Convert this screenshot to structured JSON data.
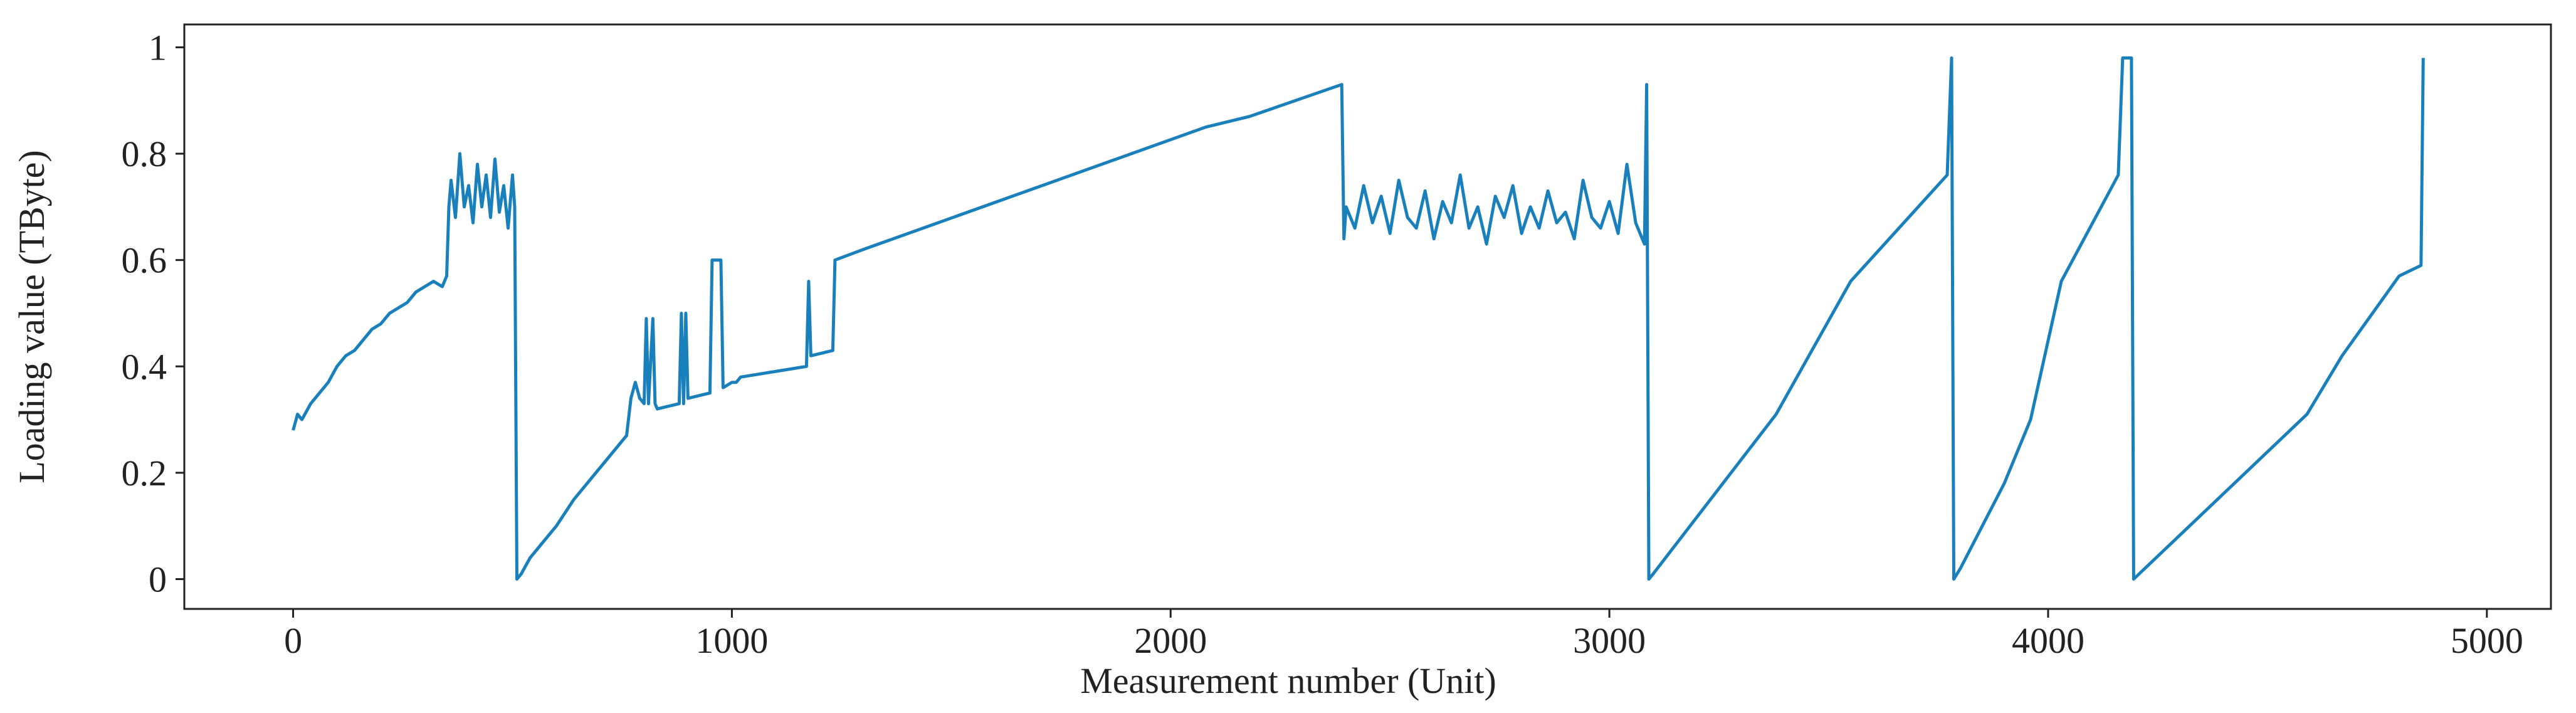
{
  "chart_data": {
    "type": "line",
    "xlabel": "Measurement number (Unit)",
    "ylabel": "Loading value (TByte)",
    "xlim": [
      -248,
      5146
    ],
    "ylim": [
      -0.056,
      1.043
    ],
    "xticks": [
      0,
      1000,
      2000,
      3000,
      4000,
      5000
    ],
    "yticks": [
      0,
      0.2,
      0.4,
      0.6,
      0.8,
      1
    ],
    "series": [
      {
        "color": "#1a80bb",
        "x": [
          0,
          10,
          20,
          40,
          60,
          80,
          100,
          120,
          140,
          160,
          180,
          200,
          220,
          240,
          260,
          280,
          300,
          320,
          340,
          350,
          355,
          360,
          370,
          380,
          390,
          400,
          410,
          420,
          430,
          440,
          450,
          460,
          470,
          480,
          490,
          500,
          505,
          510,
          520,
          540,
          560,
          600,
          640,
          680,
          720,
          760,
          770,
          780,
          790,
          800,
          805,
          810,
          820,
          825,
          830,
          880,
          885,
          890,
          895,
          900,
          950,
          955,
          975,
          980,
          1000,
          1010,
          1020,
          1170,
          1175,
          1180,
          1230,
          1235,
          1300,
          2080,
          2180,
          2390,
          2395,
          2400,
          2420,
          2440,
          2460,
          2480,
          2500,
          2520,
          2540,
          2560,
          2580,
          2600,
          2620,
          2640,
          2660,
          2680,
          2700,
          2720,
          2740,
          2760,
          2780,
          2800,
          2820,
          2840,
          2860,
          2880,
          2900,
          2920,
          2940,
          2960,
          2980,
          3000,
          3020,
          3040,
          3060,
          3080,
          3085,
          3090,
          3100,
          3380,
          3550,
          3770,
          3780,
          3785,
          3800,
          3900,
          3960,
          4030,
          4160,
          4170,
          4190,
          4195,
          4590,
          4670,
          4800,
          4850,
          4855
        ],
        "values": [
          0.28,
          0.31,
          0.3,
          0.33,
          0.35,
          0.37,
          0.4,
          0.42,
          0.43,
          0.45,
          0.47,
          0.48,
          0.5,
          0.51,
          0.52,
          0.54,
          0.55,
          0.56,
          0.55,
          0.57,
          0.7,
          0.75,
          0.68,
          0.8,
          0.7,
          0.74,
          0.67,
          0.78,
          0.7,
          0.76,
          0.68,
          0.79,
          0.69,
          0.74,
          0.66,
          0.76,
          0.7,
          0.0,
          0.01,
          0.04,
          0.06,
          0.1,
          0.15,
          0.19,
          0.23,
          0.27,
          0.34,
          0.37,
          0.34,
          0.33,
          0.49,
          0.33,
          0.49,
          0.33,
          0.32,
          0.33,
          0.5,
          0.33,
          0.5,
          0.34,
          0.35,
          0.6,
          0.6,
          0.36,
          0.37,
          0.37,
          0.38,
          0.4,
          0.56,
          0.42,
          0.43,
          0.6,
          0.62,
          0.85,
          0.87,
          0.93,
          0.64,
          0.7,
          0.66,
          0.74,
          0.67,
          0.72,
          0.65,
          0.75,
          0.68,
          0.66,
          0.73,
          0.64,
          0.71,
          0.67,
          0.76,
          0.66,
          0.7,
          0.63,
          0.72,
          0.68,
          0.74,
          0.65,
          0.7,
          0.66,
          0.73,
          0.67,
          0.69,
          0.64,
          0.75,
          0.68,
          0.66,
          0.71,
          0.65,
          0.78,
          0.67,
          0.63,
          0.93,
          0.0,
          0.01,
          0.31,
          0.56,
          0.76,
          0.98,
          0.0,
          0.02,
          0.18,
          0.3,
          0.56,
          0.76,
          0.98,
          0.98,
          0.0,
          0.31,
          0.42,
          0.57,
          0.59,
          0.98
        ]
      }
    ]
  }
}
